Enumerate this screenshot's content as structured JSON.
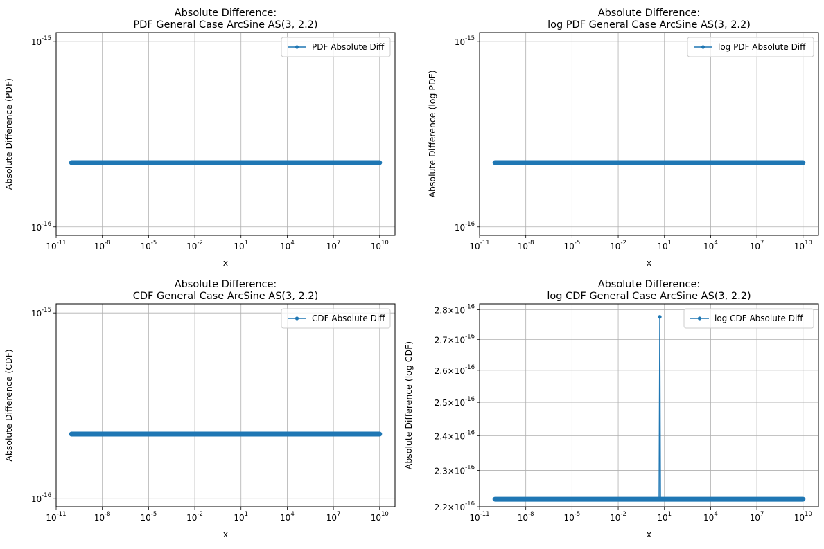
{
  "chart_data": [
    {
      "type": "line",
      "title": "Absolute Difference:",
      "subtitle": "PDF General Case ArcSine AS(3, 2.2)",
      "xlabel": "x",
      "ylabel": "Absolute Difference (PDF)",
      "xscale": "log",
      "yscale": "log",
      "xlim": [
        1e-11,
        100000000000.0
      ],
      "ylim": [
        9e-17,
        1.12e-15
      ],
      "xtick_exponents": [
        "-11",
        "-8",
        "-5",
        "-2",
        "1",
        "4",
        "7",
        "10"
      ],
      "ytick_exponents": [
        "-16",
        "-15"
      ],
      "grid": true,
      "legend_position": "top-right",
      "series": [
        {
          "name": "PDF Absolute Diff",
          "x_range": [
            1e-10,
            10000000000.0
          ],
          "y": 2.220446e-16,
          "spike": null
        }
      ]
    },
    {
      "type": "line",
      "title": "Absolute Difference:",
      "subtitle": "log PDF General Case ArcSine AS(3, 2.2)",
      "xlabel": "x",
      "ylabel": "Absolute Difference (log PDF)",
      "xscale": "log",
      "yscale": "log",
      "xlim": [
        1e-11,
        100000000000.0
      ],
      "ylim": [
        9e-17,
        1.12e-15
      ],
      "xtick_exponents": [
        "-11",
        "-8",
        "-5",
        "-2",
        "1",
        "4",
        "7",
        "10"
      ],
      "ytick_exponents": [
        "-16",
        "-15"
      ],
      "grid": true,
      "legend_position": "top-right",
      "series": [
        {
          "name": "log PDF Absolute Diff",
          "x_range": [
            1e-10,
            10000000000.0
          ],
          "y": 2.220446e-16,
          "spike": null
        }
      ]
    },
    {
      "type": "line",
      "title": "Absolute Difference:",
      "subtitle": "CDF General Case ArcSine AS(3, 2.2)",
      "xlabel": "x",
      "ylabel": "Absolute Difference (CDF)",
      "xscale": "log",
      "yscale": "log",
      "xlim": [
        1e-11,
        100000000000.0
      ],
      "ylim": [
        9e-17,
        1.12e-15
      ],
      "xtick_exponents": [
        "-11",
        "-8",
        "-5",
        "-2",
        "1",
        "4",
        "7",
        "10"
      ],
      "ytick_exponents": [
        "-16",
        "-15"
      ],
      "grid": true,
      "legend_position": "top-right",
      "series": [
        {
          "name": "CDF Absolute Diff",
          "x_range": [
            1e-10,
            10000000000.0
          ],
          "y": 2.220446e-16,
          "spike": null
        }
      ]
    },
    {
      "type": "line",
      "title": "Absolute Difference:",
      "subtitle": "log CDF General Case ArcSine AS(3, 2.2)",
      "xlabel": "x",
      "ylabel": "Absolute Difference (log CDF)",
      "xscale": "log",
      "yscale": "log",
      "xlim": [
        1e-11,
        100000000000.0
      ],
      "ylim": [
        2.2e-16,
        2.82e-16
      ],
      "xtick_exponents": [
        "-11",
        "-8",
        "-5",
        "-2",
        "1",
        "4",
        "7",
        "10"
      ],
      "yticks": [
        2.2e-16,
        2.3e-16,
        2.4e-16,
        2.5e-16,
        2.6e-16,
        2.7e-16,
        2.8e-16
      ],
      "ytick_mantissas": [
        "2.2",
        "2.3",
        "2.4",
        "2.5",
        "2.6",
        "2.7",
        "2.8"
      ],
      "ytick_exponent": "-16",
      "grid": true,
      "legend_position": "top-right",
      "series": [
        {
          "name": "log CDF Absolute Diff",
          "x_range": [
            1e-10,
            10000000000.0
          ],
          "y": 2.220446e-16,
          "spike": {
            "x": 5,
            "y": 2.775558e-16
          }
        }
      ]
    }
  ],
  "style": {
    "line_color": "#1f77b4",
    "grid_color": "#b0b0b0"
  }
}
